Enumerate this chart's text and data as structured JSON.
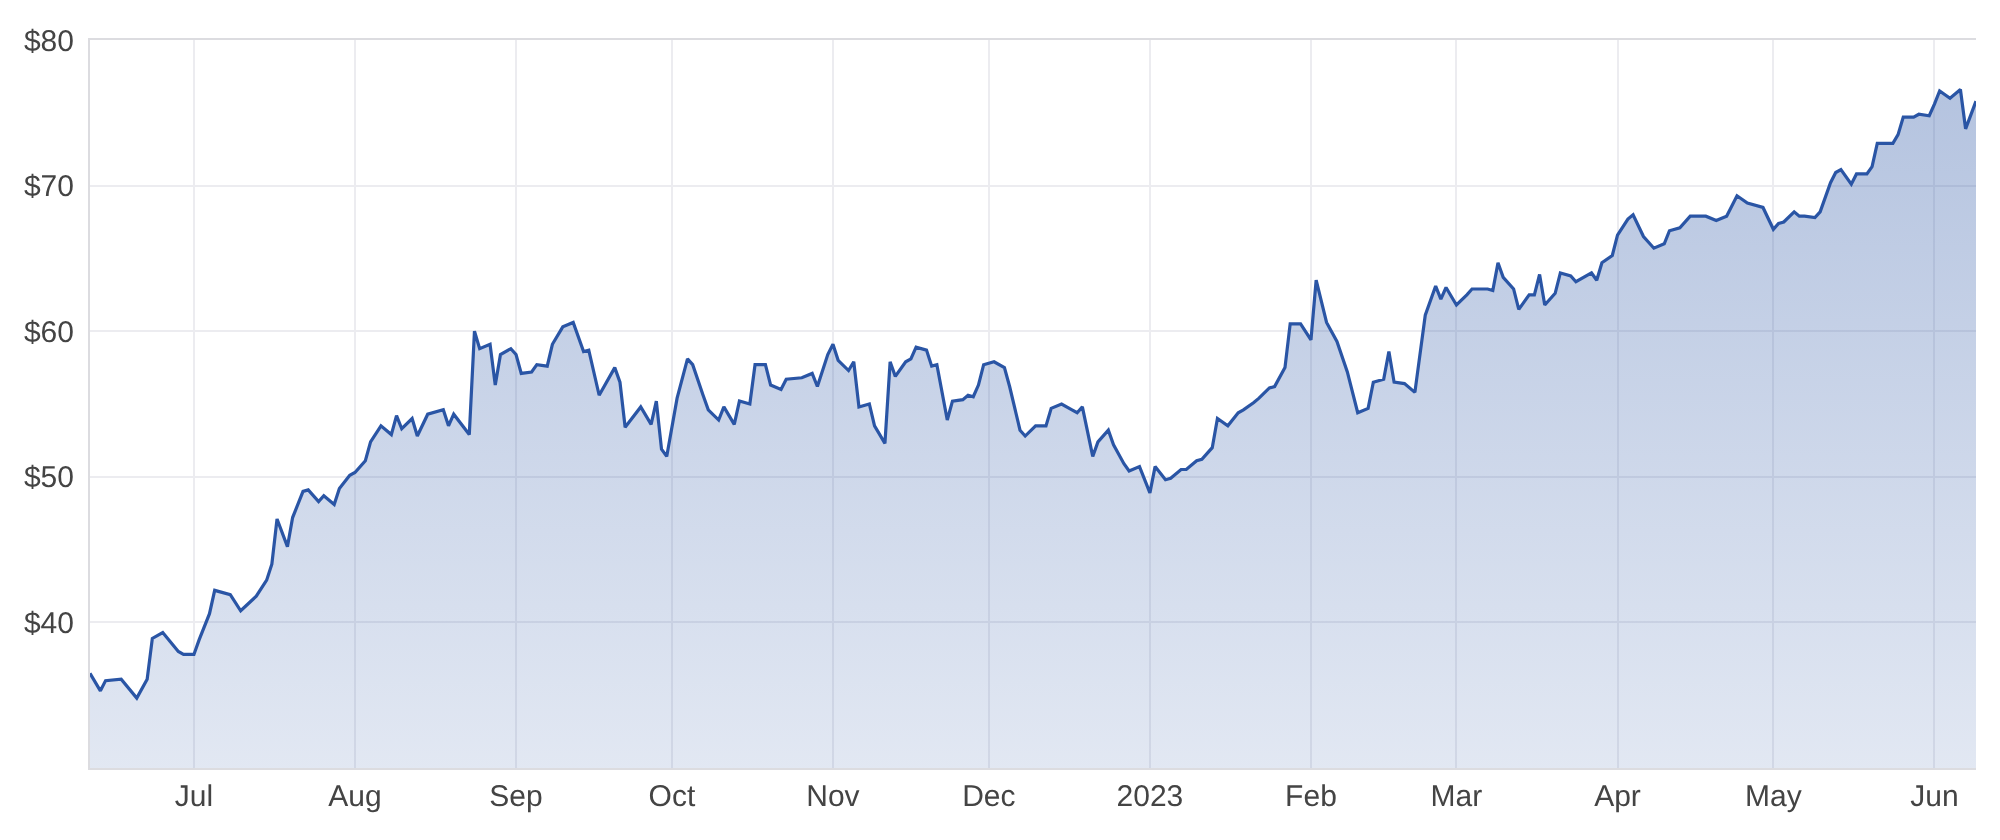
{
  "chart_data": {
    "type": "area",
    "x": [
      "2022-06-11",
      "2022-06-13",
      "2022-06-14",
      "2022-06-17",
      "2022-06-20",
      "2022-06-22",
      "2022-06-23",
      "2022-06-25",
      "2022-06-28",
      "2022-06-29",
      "2022-07-01",
      "2022-07-02",
      "2022-07-04",
      "2022-07-05",
      "2022-07-08",
      "2022-07-10",
      "2022-07-13",
      "2022-07-15",
      "2022-07-16",
      "2022-07-17",
      "2022-07-19",
      "2022-07-20",
      "2022-07-22",
      "2022-07-23",
      "2022-07-25",
      "2022-07-26",
      "2022-07-28",
      "2022-07-29",
      "2022-07-31",
      "2022-08-01",
      "2022-08-03",
      "2022-08-04",
      "2022-08-06",
      "2022-08-08",
      "2022-08-09",
      "2022-08-10",
      "2022-08-12",
      "2022-08-13",
      "2022-08-15",
      "2022-08-18",
      "2022-08-19",
      "2022-08-20",
      "2022-08-23",
      "2022-08-24",
      "2022-08-25",
      "2022-08-27",
      "2022-08-28",
      "2022-08-29",
      "2022-08-31",
      "2022-09-01",
      "2022-09-02",
      "2022-09-04",
      "2022-09-05",
      "2022-09-07",
      "2022-09-08",
      "2022-09-10",
      "2022-09-12",
      "2022-09-14",
      "2022-09-15",
      "2022-09-17",
      "2022-09-20",
      "2022-09-21",
      "2022-09-22",
      "2022-09-25",
      "2022-09-27",
      "2022-09-28",
      "2022-09-29",
      "2022-09-30",
      "2022-10-02",
      "2022-10-04",
      "2022-10-05",
      "2022-10-07",
      "2022-10-08",
      "2022-10-10",
      "2022-10-11",
      "2022-10-13",
      "2022-10-14",
      "2022-10-16",
      "2022-10-17",
      "2022-10-19",
      "2022-10-20",
      "2022-10-22",
      "2022-10-23",
      "2022-10-26",
      "2022-10-28",
      "2022-10-29",
      "2022-10-31",
      "2022-11-01",
      "2022-11-02",
      "2022-11-04",
      "2022-11-05",
      "2022-11-06",
      "2022-11-08",
      "2022-11-09",
      "2022-11-11",
      "2022-11-12",
      "2022-11-13",
      "2022-11-15",
      "2022-11-16",
      "2022-11-17",
      "2022-11-19",
      "2022-11-20",
      "2022-11-21",
      "2022-11-23",
      "2022-11-24",
      "2022-11-26",
      "2022-11-27",
      "2022-11-28",
      "2022-11-29",
      "2022-11-30",
      "2022-12-02",
      "2022-12-04",
      "2022-12-05",
      "2022-12-07",
      "2022-12-08",
      "2022-12-10",
      "2022-12-12",
      "2022-12-13",
      "2022-12-15",
      "2022-12-17",
      "2022-12-18",
      "2022-12-19",
      "2022-12-21",
      "2022-12-22",
      "2022-12-24",
      "2022-12-25",
      "2022-12-27",
      "2022-12-28",
      "2022-12-30",
      "2023-01-01",
      "2023-01-02",
      "2023-01-04",
      "2023-01-05",
      "2023-01-07",
      "2023-01-08",
      "2023-01-10",
      "2023-01-11",
      "2023-01-13",
      "2023-01-14",
      "2023-01-16",
      "2023-01-18",
      "2023-01-19",
      "2023-01-21",
      "2023-01-22",
      "2023-01-24",
      "2023-01-25",
      "2023-01-27",
      "2023-01-28",
      "2023-01-30",
      "2023-02-01",
      "2023-02-02",
      "2023-02-04",
      "2023-02-06",
      "2023-02-08",
      "2023-02-10",
      "2023-02-12",
      "2023-02-13",
      "2023-02-15",
      "2023-02-16",
      "2023-02-17",
      "2023-02-19",
      "2023-02-21",
      "2023-02-23",
      "2023-02-25",
      "2023-02-26",
      "2023-02-27",
      "2023-03-01",
      "2023-03-03",
      "2023-03-04",
      "2023-03-07",
      "2023-03-08",
      "2023-03-09",
      "2023-03-10",
      "2023-03-12",
      "2023-03-13",
      "2023-03-15",
      "2023-03-16",
      "2023-03-17",
      "2023-03-18",
      "2023-03-20",
      "2023-03-21",
      "2023-03-23",
      "2023-03-24",
      "2023-03-27",
      "2023-03-28",
      "2023-03-29",
      "2023-03-31",
      "2023-04-01",
      "2023-04-03",
      "2023-04-04",
      "2023-04-06",
      "2023-04-08",
      "2023-04-10",
      "2023-04-11",
      "2023-04-13",
      "2023-04-15",
      "2023-04-18",
      "2023-04-20",
      "2023-04-22",
      "2023-04-24",
      "2023-04-26",
      "2023-04-29",
      "2023-05-01",
      "2023-05-02",
      "2023-05-03",
      "2023-05-05",
      "2023-05-06",
      "2023-05-07",
      "2023-05-09",
      "2023-05-10",
      "2023-05-12",
      "2023-05-13",
      "2023-05-14",
      "2023-05-16",
      "2023-05-17",
      "2023-05-19",
      "2023-05-20",
      "2023-05-21",
      "2023-05-24",
      "2023-05-25",
      "2023-05-26",
      "2023-05-28",
      "2023-05-29",
      "2023-05-31",
      "2023-06-01",
      "2023-06-02",
      "2023-06-04",
      "2023-06-06",
      "2023-06-07",
      "2023-06-09"
    ],
    "series": [
      {
        "color": "#2a55a5",
        "values": [
          36.5,
          35.3,
          36.0,
          36.1,
          34.8,
          36.1,
          38.9,
          39.3,
          38.0,
          37.8,
          37.8,
          38.8,
          40.6,
          42.2,
          41.9,
          40.8,
          41.8,
          42.9,
          44.0,
          47.1,
          45.2,
          47.2,
          49.0,
          49.1,
          48.3,
          48.7,
          48.1,
          49.2,
          50.1,
          50.3,
          51.1,
          52.4,
          53.5,
          52.9,
          54.2,
          53.3,
          54.0,
          52.8,
          54.3,
          54.6,
          53.5,
          54.3,
          52.9,
          60.0,
          58.8,
          59.1,
          56.3,
          58.4,
          58.8,
          58.4,
          57.1,
          57.2,
          57.7,
          57.6,
          59.1,
          60.3,
          60.6,
          58.6,
          58.7,
          55.6,
          57.5,
          56.5,
          53.4,
          54.8,
          53.6,
          55.2,
          51.9,
          51.4,
          55.4,
          58.1,
          57.7,
          55.6,
          54.6,
          53.9,
          54.8,
          53.6,
          55.2,
          55.0,
          57.7,
          57.7,
          56.3,
          56.0,
          56.7,
          56.8,
          57.1,
          56.2,
          58.4,
          59.1,
          58.0,
          57.3,
          57.9,
          54.8,
          55.0,
          53.5,
          52.3,
          57.9,
          56.9,
          57.9,
          58.1,
          58.9,
          58.7,
          57.6,
          57.7,
          53.9,
          55.2,
          55.3,
          55.6,
          55.5,
          56.3,
          57.7,
          57.9,
          57.5,
          56.2,
          53.2,
          52.8,
          53.5,
          53.5,
          54.7,
          55.0,
          54.6,
          54.4,
          54.8,
          51.4,
          52.4,
          53.2,
          52.2,
          50.9,
          50.4,
          50.7,
          48.9,
          50.7,
          49.8,
          49.9,
          50.5,
          50.5,
          51.1,
          51.2,
          52.0,
          54.0,
          53.5,
          54.4,
          54.6,
          55.1,
          55.4,
          56.1,
          56.2,
          57.5,
          60.5,
          60.5,
          59.4,
          63.5,
          60.6,
          59.3,
          57.2,
          54.4,
          54.7,
          56.5,
          56.7,
          58.6,
          56.5,
          56.4,
          55.8,
          61.1,
          63.1,
          62.2,
          63.0,
          61.8,
          62.5,
          62.9,
          62.9,
          62.8,
          64.7,
          63.7,
          62.9,
          61.5,
          62.5,
          62.5,
          63.9,
          61.8,
          62.6,
          64.0,
          63.8,
          63.4,
          64.0,
          63.5,
          64.7,
          65.2,
          66.6,
          67.7,
          68.0,
          66.5,
          65.7,
          66.0,
          66.9,
          67.1,
          67.9,
          67.9,
          67.6,
          67.9,
          69.3,
          68.8,
          68.5,
          67.0,
          67.4,
          67.5,
          68.2,
          67.9,
          67.9,
          67.8,
          68.2,
          70.2,
          70.9,
          71.1,
          70.1,
          70.8,
          70.8,
          71.3,
          72.9,
          72.9,
          73.5,
          74.7,
          74.7,
          74.9,
          74.8,
          75.6,
          76.5,
          76.0,
          76.6,
          73.9,
          75.8
        ]
      }
    ],
    "xlim": [
      "2022-06-11",
      "2023-06-09"
    ],
    "xticks": [
      {
        "value": "2022-07-01",
        "label": "Jul"
      },
      {
        "value": "2022-08-01",
        "label": "Aug"
      },
      {
        "value": "2022-09-01",
        "label": "Sep"
      },
      {
        "value": "2022-10-01",
        "label": "Oct"
      },
      {
        "value": "2022-11-01",
        "label": "Nov"
      },
      {
        "value": "2022-12-01",
        "label": "Dec"
      },
      {
        "value": "2023-01-01",
        "label": "2023"
      },
      {
        "value": "2023-02-01",
        "label": "Feb"
      },
      {
        "value": "2023-03-01",
        "label": "Mar"
      },
      {
        "value": "2023-04-01",
        "label": "Apr"
      },
      {
        "value": "2023-05-01",
        "label": "May"
      },
      {
        "value": "2023-06-01",
        "label": "Jun"
      }
    ],
    "ylim": [
      30,
      80
    ],
    "yticks": [
      {
        "value": 40,
        "label": "$40"
      },
      {
        "value": 50,
        "label": "$50"
      },
      {
        "value": 60,
        "label": "$60"
      },
      {
        "value": 70,
        "label": "$70"
      },
      {
        "value": 80,
        "label": "$80"
      }
    ],
    "grid": true
  }
}
